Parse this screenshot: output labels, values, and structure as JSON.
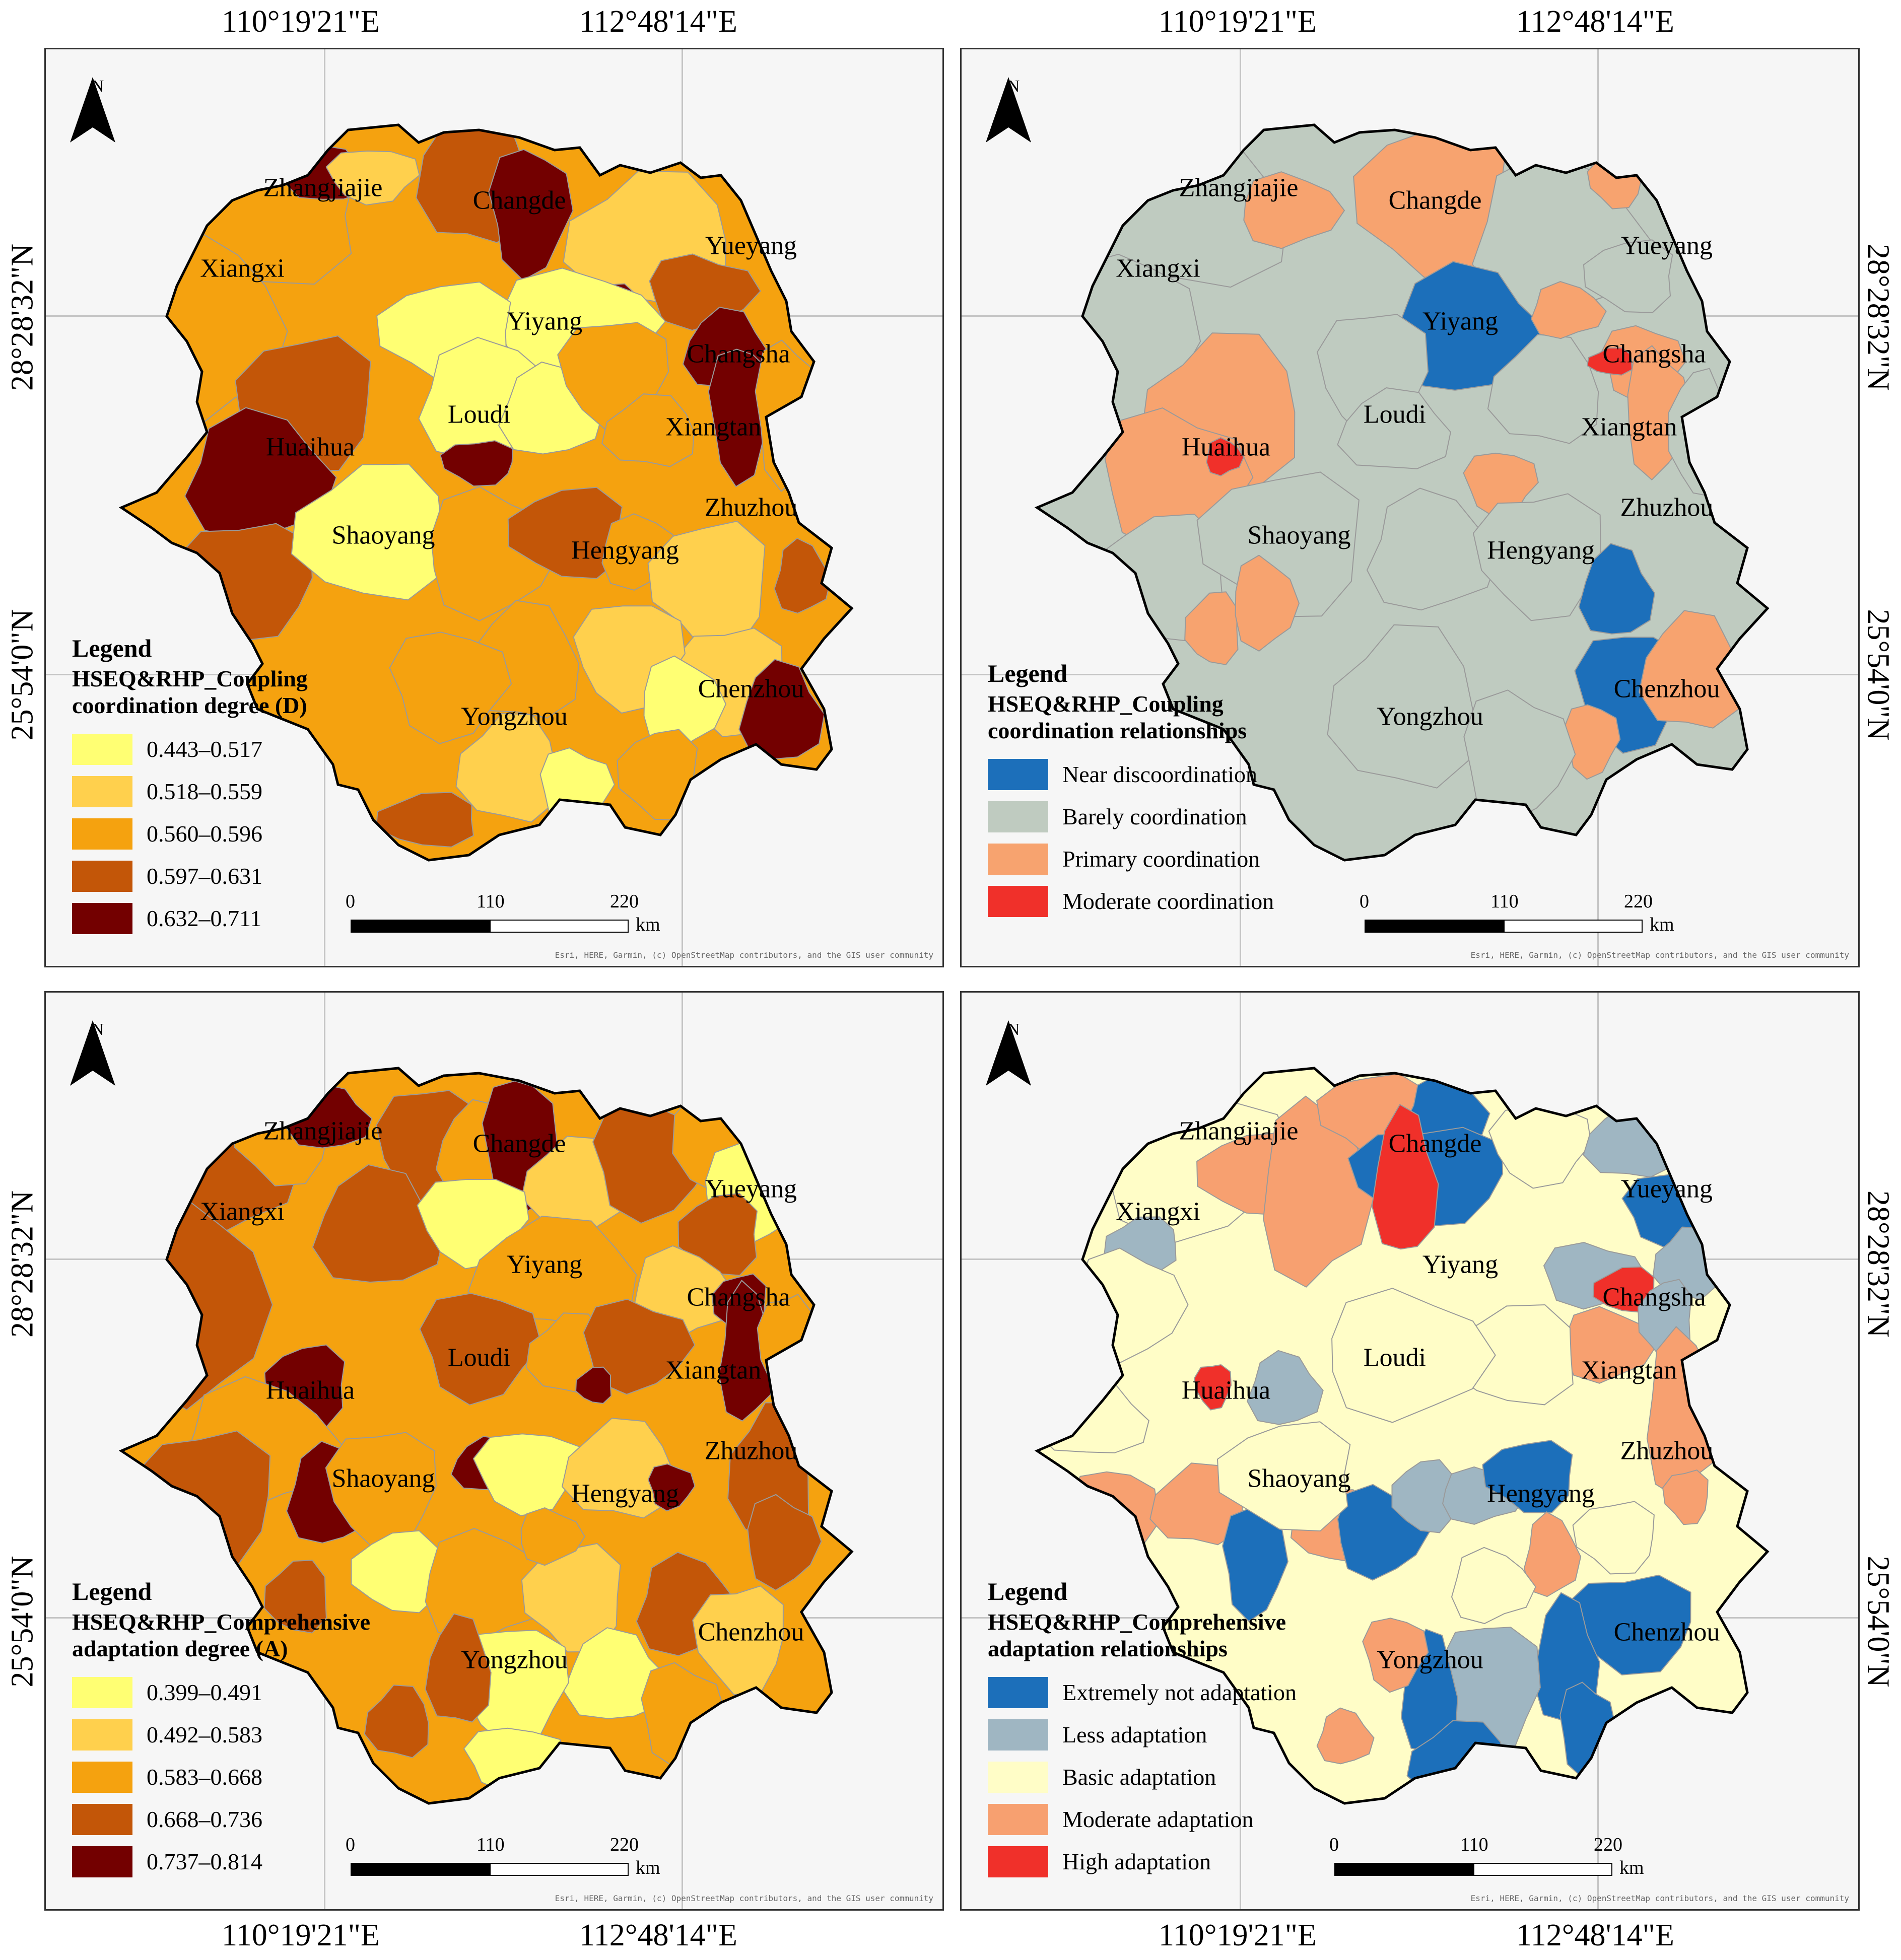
{
  "coords": {
    "lon_left": "110°19'21\"E",
    "lon_right": "112°48'14\"E",
    "lat_top": "28°28'32\"N",
    "lat_bottom": "25°54'0\"N"
  },
  "attribution": "Esri, HERE, Garmin, (c) OpenStreetMap contributors, and the GIS user community",
  "north_label": "N",
  "scale": {
    "ticks": [
      "0",
      "110",
      "220"
    ],
    "unit": "km"
  },
  "cities": [
    "Zhangjiajie",
    "Changde",
    "Xiangxi",
    "Yueyang",
    "Yiyang",
    "Changsha",
    "Loudi",
    "Xiangtan",
    "Huaihua",
    "Zhuzhou",
    "Shaoyang",
    "Hengyang",
    "Chenzhou",
    "Yongzhou"
  ],
  "panels": [
    {
      "legend_title": "Legend",
      "legend_subtitle": [
        "HSEQ&RHP_Coupling",
        "coordination degree (D)"
      ],
      "classes": [
        {
          "label": "0.443–0.517",
          "color": "#ffff73"
        },
        {
          "label": "0.518–0.559",
          "color": "#ffd04d"
        },
        {
          "label": "0.560–0.596",
          "color": "#f5a20f"
        },
        {
          "label": "0.597–0.631",
          "color": "#c35608"
        },
        {
          "label": "0.632–0.711",
          "color": "#730000"
        }
      ]
    },
    {
      "legend_title": "Legend",
      "legend_subtitle": [
        "HSEQ&RHP_Coupling",
        "coordination relationships"
      ],
      "classes": [
        {
          "label": "Near discoordination",
          "color": "#1c6fba"
        },
        {
          "label": "Barely coordination",
          "color": "#bfcbc0"
        },
        {
          "label": "Primary coordination",
          "color": "#f7a36f"
        },
        {
          "label": "Moderate coordination",
          "color": "#f0302a"
        }
      ]
    },
    {
      "legend_title": "Legend",
      "legend_subtitle": [
        "HSEQ&RHP_Comprehensive",
        "adaptation degree (A)"
      ],
      "classes": [
        {
          "label": "0.399–0.491",
          "color": "#ffff73"
        },
        {
          "label": "0.492–0.583",
          "color": "#ffd04d"
        },
        {
          "label": "0.583–0.668",
          "color": "#f5a20f"
        },
        {
          "label": "0.668–0.736",
          "color": "#c35608"
        },
        {
          "label": "0.737–0.814",
          "color": "#730000"
        }
      ]
    },
    {
      "legend_title": "Legend",
      "legend_subtitle": [
        "HSEQ&RHP_Comprehensive",
        "adaptation relationships"
      ],
      "classes": [
        {
          "label": "Extremely not adaptation",
          "color": "#1c6fba"
        },
        {
          "label": "Less adaptation",
          "color": "#9fb6c2"
        },
        {
          "label": "Basic adaptation",
          "color": "#fffdc7"
        },
        {
          "label": "Moderate adaptation",
          "color": "#f7a070"
        },
        {
          "label": "High adaptation",
          "color": "#f0302a"
        }
      ]
    }
  ]
}
